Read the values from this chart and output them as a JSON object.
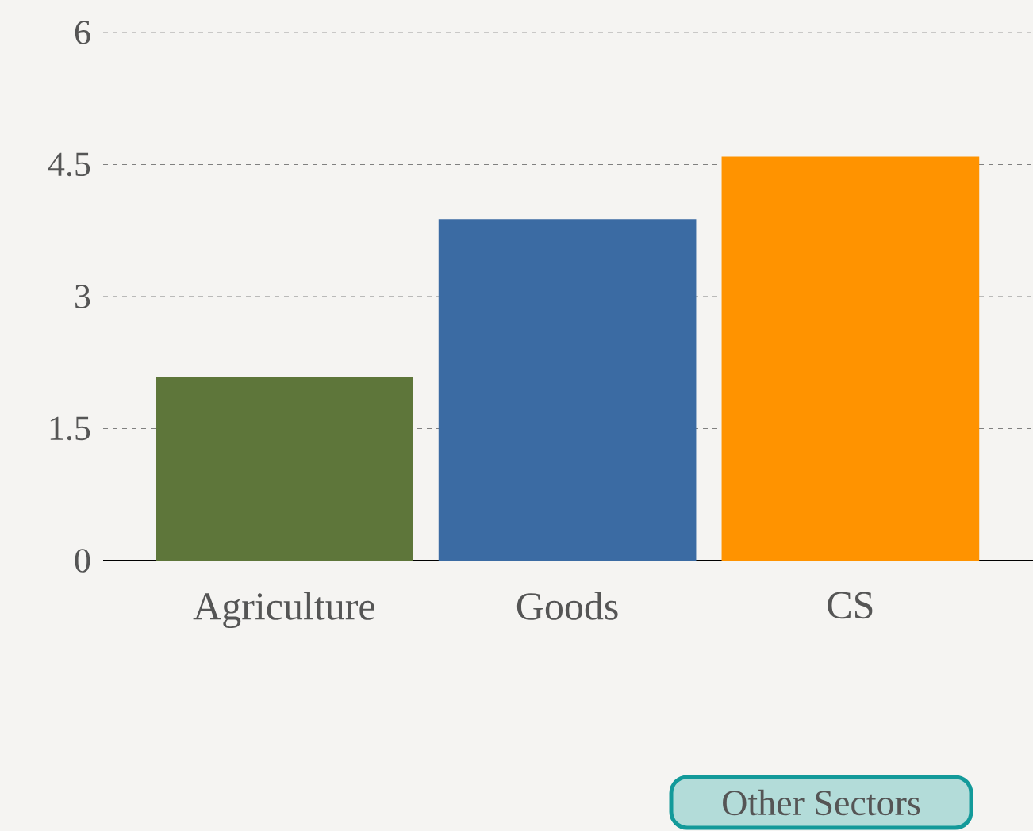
{
  "chart_data": {
    "type": "bar",
    "categories": [
      "Agriculture",
      "Goods",
      "CS"
    ],
    "values": [
      2.08,
      3.88,
      4.59
    ],
    "colors": [
      "#5e763a",
      "#3b6ba3",
      "#ff9300"
    ],
    "ylim": [
      0,
      6
    ],
    "yticks": [
      0,
      1.5,
      3,
      4.5,
      6
    ],
    "grid": "y",
    "annotations": [
      "Other Sectors"
    ]
  }
}
